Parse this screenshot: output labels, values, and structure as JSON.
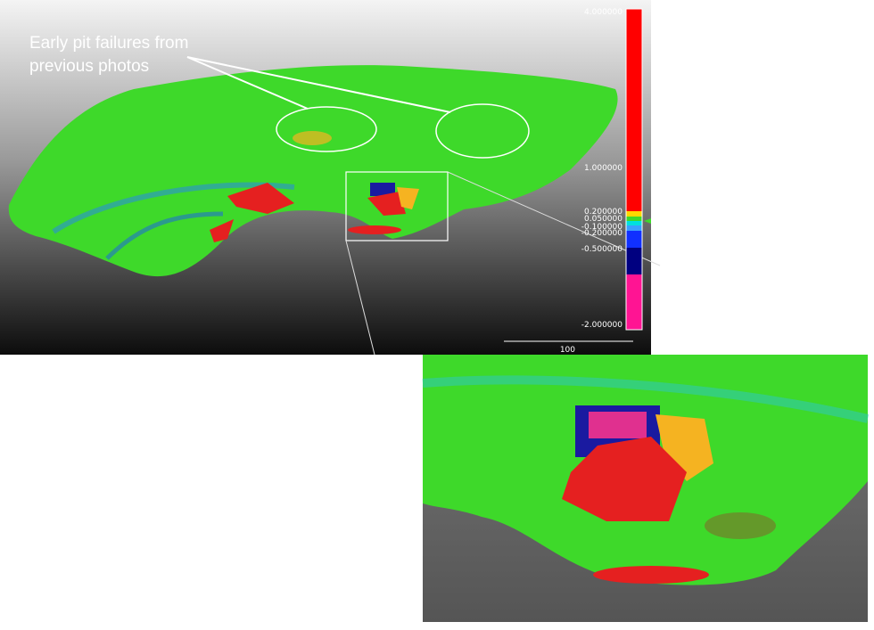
{
  "annotation": {
    "lines": [
      "Early pit failures from",
      "previous photos"
    ]
  },
  "colorbar": {
    "labels": [
      "4.000000",
      "1.000000",
      "0.200000",
      "0.050000",
      "-0.100000",
      "-0.200000",
      "-0.500000",
      "-2.000000"
    ]
  },
  "scale_bar": {
    "label": "100"
  }
}
